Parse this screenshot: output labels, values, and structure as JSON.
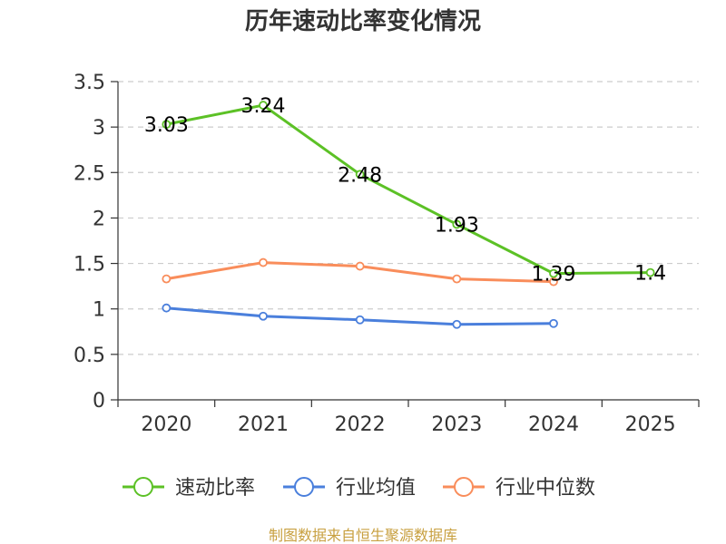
{
  "chart_data": {
    "type": "line",
    "title": "历年速动比率变化情况",
    "categories": [
      "2020",
      "2021",
      "2022",
      "2023",
      "2024",
      "2025"
    ],
    "ylim": [
      0,
      3.5
    ],
    "yticks": [
      "0",
      "0.5",
      "1",
      "1.5",
      "2",
      "2.5",
      "3",
      "3.5"
    ],
    "grid": true,
    "legend_position": "bottom",
    "series": [
      {
        "name": "速动比率",
        "color": "#5cc126",
        "values": [
          3.03,
          3.24,
          2.48,
          1.93,
          1.39,
          1.4
        ],
        "labels": [
          "3.03",
          "3.24",
          "2.48",
          "1.93",
          "1.39",
          "1.4"
        ]
      },
      {
        "name": "行业均值",
        "color": "#4a7fdc",
        "values": [
          1.01,
          0.92,
          0.88,
          0.83,
          0.84,
          null
        ]
      },
      {
        "name": "行业中位数",
        "color": "#f98d5b",
        "values": [
          1.33,
          1.51,
          1.47,
          1.33,
          1.3,
          null
        ]
      }
    ]
  },
  "source": "制图数据来自恒生聚源数据库"
}
